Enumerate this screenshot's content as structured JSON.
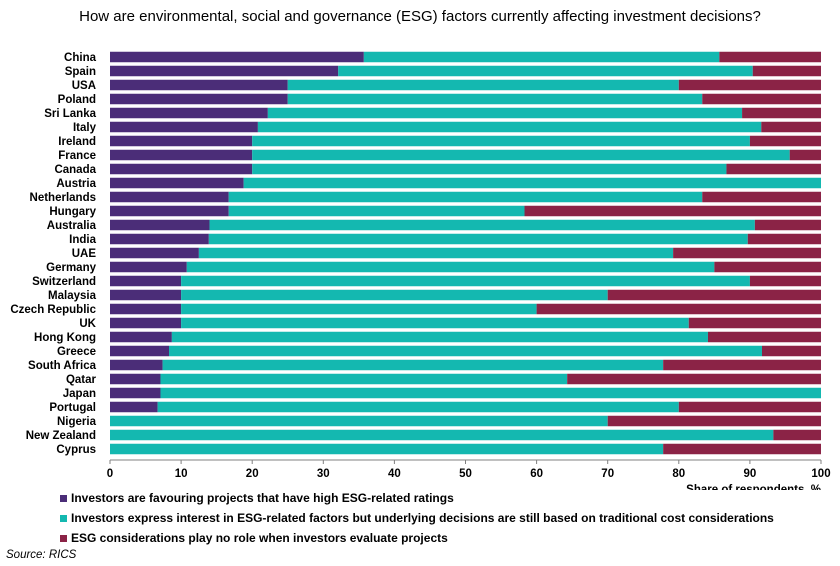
{
  "chart_data": {
    "type": "bar",
    "orientation": "horizontal",
    "stacked": true,
    "title": "How are environmental, social and governance (ESG) factors currently affecting investment decisions?",
    "xlabel": "Share of respondents, %",
    "ylabel": "",
    "xlim": [
      0,
      100
    ],
    "xticks": [
      "0",
      "10",
      "20",
      "30",
      "40",
      "50",
      "60",
      "70",
      "80",
      "90",
      "100"
    ],
    "categories": [
      "China",
      "Spain",
      "USA",
      "Poland",
      "Sri Lanka",
      "Italy",
      "Ireland",
      "France",
      "Canada",
      "Austria",
      "Netherlands",
      "Hungary",
      "Australia",
      "India",
      "UAE",
      "Germany",
      "Switzerland",
      "Malaysia",
      "Czech Republic",
      "UK",
      "Hong Kong",
      "Greece",
      "South Africa",
      "Qatar",
      "Japan",
      "Portugal",
      "Nigeria",
      "New Zealand",
      "Cyprus"
    ],
    "series": [
      {
        "name": "Investors are favouring projects that have high ESG-related ratings",
        "color": "#4b2d78",
        "values": [
          35.7,
          32.1,
          25,
          25,
          22.2,
          20.8,
          20,
          20,
          20,
          18.8,
          16.7,
          16.7,
          14,
          13.9,
          12.5,
          10.8,
          10,
          10,
          10,
          10,
          8.7,
          8.3,
          7.4,
          7.1,
          7.1,
          6.7,
          0,
          0,
          0
        ]
      },
      {
        "name": "Investors express interest in ESG-related factors but underlying decisions are still based on traditional cost considerations",
        "color": "#14b8b0",
        "values": [
          50,
          58.3,
          55,
          58.3,
          66.7,
          70.8,
          70,
          75.6,
          66.7,
          81.2,
          66.6,
          41.6,
          76.7,
          75.8,
          66.7,
          74.2,
          80,
          60,
          50,
          71.4,
          75.4,
          83.4,
          70.4,
          57.2,
          92.9,
          73.3,
          70,
          93.3,
          77.8
        ]
      },
      {
        "name": "ESG considerations play no role when investors evaluate projects",
        "color": "#8b2346",
        "values": [
          14.3,
          9.6,
          20,
          16.7,
          11.1,
          8.4,
          10,
          4.4,
          13.3,
          0,
          16.7,
          41.7,
          9.3,
          10.3,
          20.8,
          15,
          10,
          30,
          40,
          18.6,
          15.9,
          8.3,
          22.2,
          35.7,
          0,
          20,
          30,
          6.7,
          22.2
        ]
      }
    ],
    "legend_position": "bottom-left",
    "grid": false
  },
  "source": "Source: RICS"
}
